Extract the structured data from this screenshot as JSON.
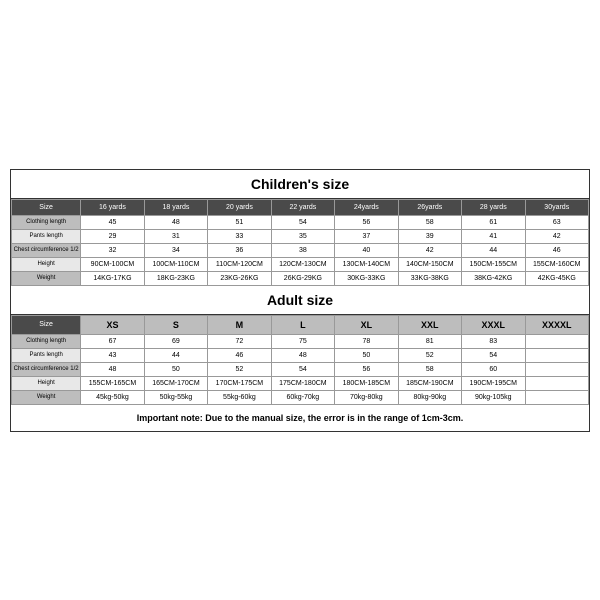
{
  "children": {
    "title": "Children's size",
    "headers": [
      "Size",
      "16 yards",
      "18 yards",
      "20 yards",
      "22 yards",
      "24yards",
      "26yards",
      "28 yards",
      "30yards"
    ],
    "rows": [
      {
        "label": "Clothing length",
        "style": "row-label",
        "cells": [
          "45",
          "48",
          "51",
          "54",
          "56",
          "58",
          "61",
          "63"
        ]
      },
      {
        "label": "Pants length",
        "style": "row-label-light",
        "cells": [
          "29",
          "31",
          "33",
          "35",
          "37",
          "39",
          "41",
          "42"
        ]
      },
      {
        "label": "Chest circumference 1/2",
        "style": "row-label",
        "cells": [
          "32",
          "34",
          "36",
          "38",
          "40",
          "42",
          "44",
          "46"
        ]
      },
      {
        "label": "Height",
        "style": "row-label-light",
        "cells": [
          "90CM-100CM",
          "100CM-110CM",
          "110CM-120CM",
          "120CM-130CM",
          "130CM-140CM",
          "140CM-150CM",
          "150CM-155CM",
          "155CM-160CM"
        ]
      },
      {
        "label": "Weight",
        "style": "row-label",
        "cells": [
          "14KG-17KG",
          "18KG-23KG",
          "23KG-26KG",
          "26KG-29KG",
          "30KG-33KG",
          "33KG-38KG",
          "38KG-42KG",
          "42KG-45KG"
        ]
      }
    ]
  },
  "adult": {
    "title": "Adult size",
    "headers": [
      "Size",
      "XS",
      "S",
      "M",
      "L",
      "XL",
      "XXL",
      "XXXL",
      "XXXXL"
    ],
    "rows": [
      {
        "label": "Clothing length",
        "style": "row-label",
        "cells": [
          "67",
          "69",
          "72",
          "75",
          "78",
          "81",
          "83",
          ""
        ]
      },
      {
        "label": "Pants length",
        "style": "row-label-light",
        "cells": [
          "43",
          "44",
          "46",
          "48",
          "50",
          "52",
          "54",
          ""
        ]
      },
      {
        "label": "Chest circumference 1/2",
        "style": "row-label",
        "cells": [
          "48",
          "50",
          "52",
          "54",
          "56",
          "58",
          "60",
          ""
        ]
      },
      {
        "label": "Height",
        "style": "row-label-light",
        "cells": [
          "155CM-165CM",
          "165CM-170CM",
          "170CM-175CM",
          "175CM-180CM",
          "180CM-185CM",
          "185CM-190CM",
          "190CM-195CM",
          ""
        ]
      },
      {
        "label": "Weight",
        "style": "row-label",
        "cells": [
          "45kg-50kg",
          "50kg-55kg",
          "55kg-60kg",
          "60kg-70kg",
          "70kg-80kg",
          "80kg-90kg",
          "90kg-105kg",
          ""
        ]
      }
    ]
  },
  "note": "Important note: Due to the manual size, the error is in the range of 1cm-3cm."
}
